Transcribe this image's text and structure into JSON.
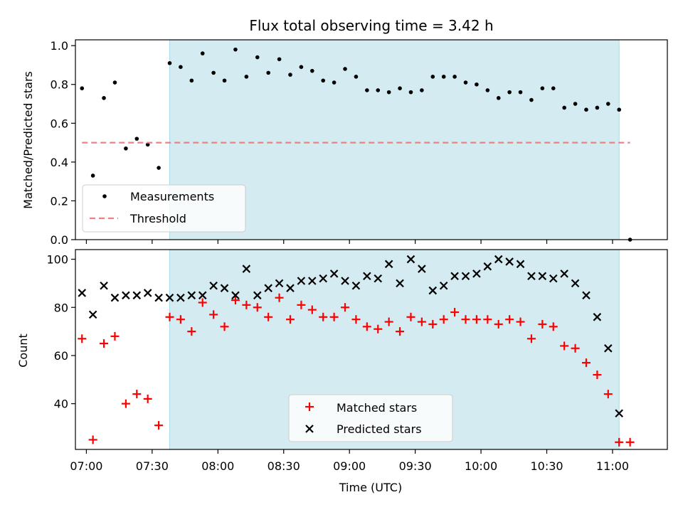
{
  "chart_data": [
    {
      "type": "scatter",
      "title": "Flux total observing time = 3.42 h",
      "ylabel": "Matched/Predicted stars",
      "ylim": [
        0,
        1.03
      ],
      "yticks": [
        "0.0",
        "0.2",
        "0.4",
        "0.6",
        "0.8",
        "1.0"
      ],
      "xlim": [
        "06:55",
        "11:25"
      ],
      "observing_window": [
        "07:38",
        "11:03"
      ],
      "shade_color": "#d4ebf1",
      "legend_position": "lower-left",
      "series": [
        {
          "name": "Measurements",
          "color": "#000000",
          "x": [
            "06:58",
            "07:03",
            "07:08",
            "07:13",
            "07:18",
            "07:23",
            "07:28",
            "07:33",
            "07:38",
            "07:43",
            "07:48",
            "07:53",
            "07:58",
            "08:03",
            "08:08",
            "08:13",
            "08:18",
            "08:23",
            "08:28",
            "08:33",
            "08:38",
            "08:43",
            "08:48",
            "08:53",
            "08:58",
            "09:03",
            "09:08",
            "09:13",
            "09:18",
            "09:23",
            "09:28",
            "09:33",
            "09:38",
            "09:43",
            "09:48",
            "09:53",
            "09:58",
            "10:03",
            "10:08",
            "10:13",
            "10:18",
            "10:23",
            "10:28",
            "10:33",
            "10:38",
            "10:43",
            "10:48",
            "10:53",
            "10:58",
            "11:03",
            "11:08"
          ],
          "y": [
            0.78,
            0.33,
            0.73,
            0.81,
            0.47,
            0.52,
            0.49,
            0.37,
            0.91,
            0.89,
            0.82,
            0.96,
            0.86,
            0.82,
            0.98,
            0.84,
            0.94,
            0.86,
            0.93,
            0.85,
            0.89,
            0.87,
            0.82,
            0.81,
            0.88,
            0.84,
            0.77,
            0.77,
            0.76,
            0.78,
            0.76,
            0.77,
            0.84,
            0.84,
            0.84,
            0.81,
            0.8,
            0.77,
            0.73,
            0.76,
            0.76,
            0.72,
            0.78,
            0.78,
            0.68,
            0.7,
            0.67,
            0.68,
            0.7,
            0.67,
            0.0
          ]
        },
        {
          "name": "Threshold",
          "color": "#f08080",
          "style": "dashed",
          "x": [
            "06:58",
            "11:08"
          ],
          "y": [
            0.5,
            0.5
          ]
        }
      ]
    },
    {
      "type": "scatter",
      "xlabel": "Time (UTC)",
      "ylabel": "Count",
      "ylim": [
        21,
        104
      ],
      "yticks": [
        "40",
        "60",
        "80",
        "100"
      ],
      "xticks": [
        "07:00",
        "07:30",
        "08:00",
        "08:30",
        "09:00",
        "09:30",
        "10:00",
        "10:30",
        "11:00"
      ],
      "xlim": [
        "06:55",
        "11:25"
      ],
      "observing_window": [
        "07:38",
        "11:03"
      ],
      "shade_color": "#d4ebf1",
      "legend_position": "lower-center",
      "series": [
        {
          "name": "Matched stars",
          "color": "#ff0000",
          "marker": "plus",
          "x": [
            "06:58",
            "07:03",
            "07:08",
            "07:13",
            "07:18",
            "07:23",
            "07:28",
            "07:33",
            "07:38",
            "07:43",
            "07:48",
            "07:53",
            "07:58",
            "08:03",
            "08:08",
            "08:13",
            "08:18",
            "08:23",
            "08:28",
            "08:33",
            "08:38",
            "08:43",
            "08:48",
            "08:53",
            "08:58",
            "09:03",
            "09:08",
            "09:13",
            "09:18",
            "09:23",
            "09:28",
            "09:33",
            "09:38",
            "09:43",
            "09:48",
            "09:53",
            "09:58",
            "10:03",
            "10:08",
            "10:13",
            "10:18",
            "10:23",
            "10:28",
            "10:33",
            "10:38",
            "10:43",
            "10:48",
            "10:53",
            "10:58",
            "11:03",
            "11:08"
          ],
          "y": [
            67,
            25,
            65,
            68,
            40,
            44,
            42,
            31,
            76,
            75,
            70,
            82,
            77,
            72,
            83,
            81,
            80,
            76,
            84,
            75,
            81,
            79,
            76,
            76,
            80,
            75,
            72,
            71,
            74,
            70,
            76,
            74,
            73,
            75,
            78,
            75,
            75,
            75,
            73,
            75,
            74,
            67,
            73,
            72,
            64,
            63,
            57,
            52,
            44,
            24,
            24
          ]
        },
        {
          "name": "Predicted stars",
          "color": "#000000",
          "marker": "x",
          "x": [
            "06:58",
            "07:03",
            "07:08",
            "07:13",
            "07:18",
            "07:23",
            "07:28",
            "07:33",
            "07:38",
            "07:43",
            "07:48",
            "07:53",
            "07:58",
            "08:03",
            "08:08",
            "08:13",
            "08:18",
            "08:23",
            "08:28",
            "08:33",
            "08:38",
            "08:43",
            "08:48",
            "08:53",
            "08:58",
            "09:03",
            "09:08",
            "09:13",
            "09:18",
            "09:23",
            "09:28",
            "09:33",
            "09:38",
            "09:43",
            "09:48",
            "09:53",
            "09:58",
            "10:03",
            "10:08",
            "10:13",
            "10:18",
            "10:23",
            "10:28",
            "10:33",
            "10:38",
            "10:43",
            "10:48",
            "10:53",
            "10:58",
            "11:03"
          ],
          "y": [
            86,
            77,
            89,
            84,
            85,
            85,
            86,
            84,
            84,
            84,
            85,
            85,
            89,
            88,
            85,
            96,
            85,
            88,
            90,
            88,
            91,
            91,
            92,
            94,
            91,
            89,
            93,
            92,
            98,
            90,
            100,
            96,
            87,
            89,
            93,
            93,
            94,
            97,
            100,
            99,
            98,
            93,
            93,
            92,
            94,
            90,
            85,
            76,
            63,
            36
          ]
        }
      ]
    }
  ]
}
